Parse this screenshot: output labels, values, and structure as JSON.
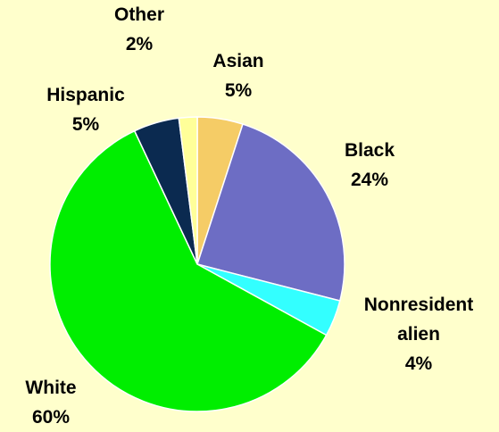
{
  "chart_data": {
    "type": "pie",
    "title": "",
    "start": "12 o'clock",
    "direction": "clockwise",
    "slices": [
      {
        "label": "Asian",
        "value": 5,
        "value_label": "5%",
        "color": "#F5CC66"
      },
      {
        "label": "Black",
        "value": 24,
        "value_label": "24%",
        "color": "#6D6DC4"
      },
      {
        "label": "Nonresident alien",
        "value": 4,
        "value_label": "4%",
        "color": "#33FFFF"
      },
      {
        "label": "White",
        "value": 60,
        "value_label": "60%",
        "color": "#00EE00"
      },
      {
        "label": "Hispanic",
        "value": 5,
        "value_label": "5%",
        "color": "#0B2A50"
      },
      {
        "label": "Other",
        "value": 2,
        "value_label": "2%",
        "color": "#FFFF99"
      }
    ],
    "background": "#FFFFCC",
    "slice_border": "#FFFFFF"
  }
}
